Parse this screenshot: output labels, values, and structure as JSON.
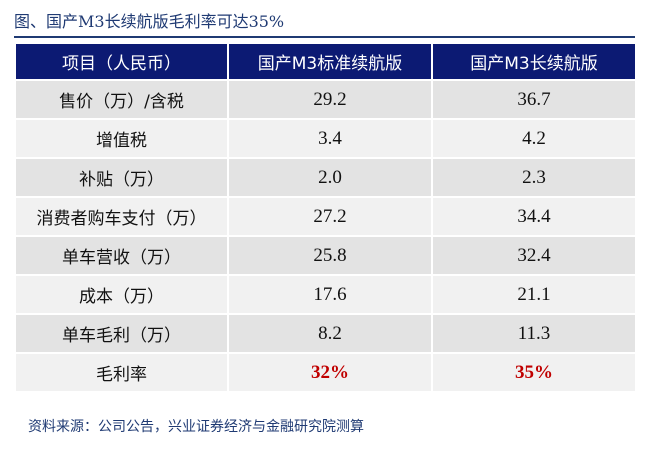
{
  "title": "图、国产M3长续航版毛利率可达35%",
  "source": "资料来源：公司公告，兴业证券经济与金融研究院测算",
  "colors": {
    "header_bg": "#0c1a73",
    "highlight": "#c00000",
    "row_dark": "#e3e3e3",
    "row_light": "#f1f1f1"
  },
  "chart_data": {
    "type": "table",
    "title": "图、国产M3长续航版毛利率可达35%",
    "columns": [
      "项目（人民币）",
      "国产M3标准续航版",
      "国产M3长续航版"
    ],
    "rows": [
      {
        "label": "售价（万）/含税",
        "values": [
          "29.2",
          "36.7"
        ]
      },
      {
        "label": "增值税",
        "values": [
          "3.4",
          "4.2"
        ]
      },
      {
        "label": "补贴（万）",
        "values": [
          "2.0",
          "2.3"
        ]
      },
      {
        "label": "消费者购车支付（万）",
        "values": [
          "27.2",
          "34.4"
        ]
      },
      {
        "label": "单车营收（万）",
        "values": [
          "25.8",
          "32.4"
        ]
      },
      {
        "label": "成本（万）",
        "values": [
          "17.6",
          "21.1"
        ]
      },
      {
        "label": "单车毛利（万）",
        "values": [
          "8.2",
          "11.3"
        ]
      },
      {
        "label": "毛利率",
        "values": [
          "32%",
          "35%"
        ]
      }
    ]
  }
}
